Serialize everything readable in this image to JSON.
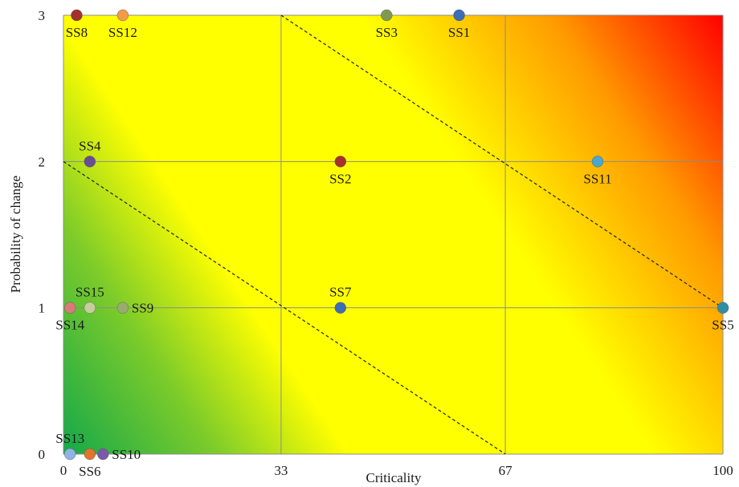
{
  "chart_data": {
    "type": "scatter",
    "title": "",
    "xlabel": "Criticality",
    "ylabel": "Probability of change",
    "xlim": [
      0,
      100
    ],
    "ylim": [
      0,
      3
    ],
    "x_ticks": [
      0,
      33,
      67,
      100
    ],
    "y_ticks": [
      0,
      1,
      2,
      3
    ],
    "grid": true,
    "legend": "none",
    "background": "gradient from green (low criticality, low probability) through yellow to red (high criticality, high probability)",
    "diagonal_lines": [
      {
        "style": "dashed",
        "from": [
          0,
          2
        ],
        "to": [
          67,
          0
        ]
      },
      {
        "style": "dashed",
        "from": [
          33,
          3
        ],
        "to": [
          100,
          1
        ]
      }
    ],
    "points": [
      {
        "label": "SS1",
        "x": 60,
        "y": 3,
        "color": "#3d6db5",
        "label_pos": "below"
      },
      {
        "label": "SS2",
        "x": 42,
        "y": 2,
        "color": "#a5312c",
        "label_pos": "below"
      },
      {
        "label": "SS3",
        "x": 49,
        "y": 3,
        "color": "#7f9a4f",
        "label_pos": "below"
      },
      {
        "label": "SS4",
        "x": 4,
        "y": 2,
        "color": "#6a4c93",
        "label_pos": "above"
      },
      {
        "label": "SS5",
        "x": 100,
        "y": 1,
        "color": "#2f8fa3",
        "label_pos": "below"
      },
      {
        "label": "SS6",
        "x": 4,
        "y": 0,
        "color": "#e0762c",
        "label_pos": "below"
      },
      {
        "label": "SS7",
        "x": 42,
        "y": 1,
        "color": "#3d6db5",
        "label_pos": "above"
      },
      {
        "label": "SS8",
        "x": 2,
        "y": 3,
        "color": "#a5312c",
        "label_pos": "below"
      },
      {
        "label": "SS9",
        "x": 9,
        "y": 1,
        "color": "#9aab6e",
        "label_pos": "right"
      },
      {
        "label": "SS10",
        "x": 6,
        "y": 0,
        "color": "#7a5aa8",
        "label_pos": "right"
      },
      {
        "label": "SS11",
        "x": 81,
        "y": 2,
        "color": "#4aa7cf",
        "label_pos": "below"
      },
      {
        "label": "SS12",
        "x": 9,
        "y": 3,
        "color": "#f39a4a",
        "label_pos": "below"
      },
      {
        "label": "SS13",
        "x": 1,
        "y": 0,
        "color": "#8fb4e3",
        "label_pos": "above"
      },
      {
        "label": "SS14",
        "x": 1,
        "y": 1,
        "color": "#d97a7a",
        "label_pos": "below"
      },
      {
        "label": "SS15",
        "x": 4,
        "y": 1,
        "color": "#c6cf9a",
        "label_pos": "above"
      }
    ]
  }
}
